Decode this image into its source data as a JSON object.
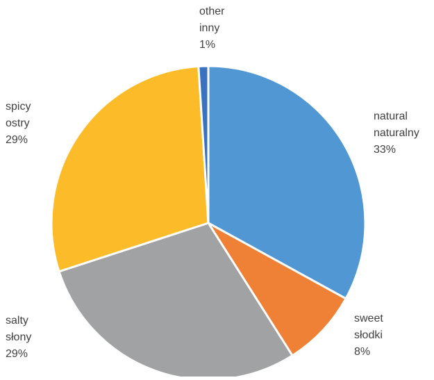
{
  "chart_data": {
    "type": "pie",
    "title": "",
    "legend": "none",
    "slices": [
      {
        "category": "natural",
        "category_pl": "naturalny",
        "value": 33,
        "value_label": "33%",
        "color": "#5097D4"
      },
      {
        "category": "sweet",
        "category_pl": "słodki",
        "value": 8,
        "value_label": "8%",
        "color": "#EF8136"
      },
      {
        "category": "salty",
        "category_pl": "słony",
        "value": 29,
        "value_label": "29%",
        "color": "#A0A2A4"
      },
      {
        "category": "spicy",
        "category_pl": "ostry",
        "value": 29,
        "value_label": "29%",
        "color": "#FCBB29"
      },
      {
        "category": "other",
        "category_pl": "inny",
        "value": 1,
        "value_label": "1%",
        "color": "#3B72C0"
      }
    ]
  }
}
